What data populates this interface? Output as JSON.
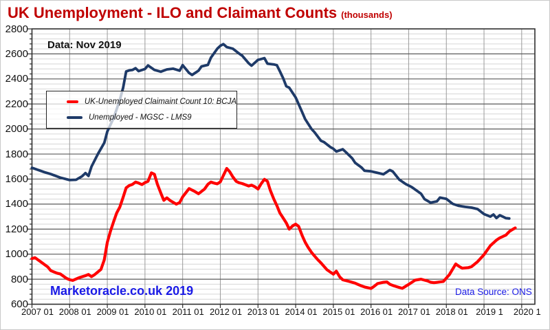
{
  "page": {
    "title": "UK Unemployment - ILO and Claimant Counts",
    "title_suffix": "(thousands)",
    "annotation_date": "Data: Nov 2019",
    "watermark": "Marketoracle.co.uk 2019",
    "data_source": "Data Source: ONS",
    "colors": {
      "title": "#C00000",
      "claimant_line": "#FF0000",
      "ilo_line": "#1E3A68",
      "watermark_blue": "#1A1AE6",
      "grid_minor": "#D6D6D6",
      "grid_major_h": "#5A5A5A",
      "grid_vertical": "#9A9A9A",
      "frame": "#2F2F2F"
    }
  },
  "chart_data": {
    "type": "line",
    "title": "UK Unemployment - ILO and Claimant Counts (thousands)",
    "units": "thousands",
    "annotation": "Data: Nov 2019",
    "source": "Data Source: ONS",
    "grid": "on",
    "legend_position": "upper-left",
    "x_axis": {
      "range": [
        2007.0,
        2020.35
      ],
      "tick_years": [
        2007,
        2008,
        2009,
        2010,
        2011,
        2012,
        2013,
        2014,
        2015,
        2016,
        2017,
        2018,
        2019,
        2020
      ],
      "tick_labels": [
        "2007 01",
        "2008 01",
        "2009 01",
        "2010 01",
        "2011 01",
        "2012 01",
        "2013 01",
        "2014 01",
        "2015 01",
        "2016 01",
        "2017 01",
        "2018 01",
        "2019 1",
        "2020 1"
      ]
    },
    "y_axis": {
      "range": [
        600,
        2800
      ],
      "major_step": 200,
      "minor_step": 40,
      "tick_labels": [
        2800,
        2600,
        2400,
        2200,
        2000,
        1800,
        1600,
        1400,
        1200,
        1000,
        800,
        600
      ]
    },
    "series": [
      {
        "name": "UK-Unemployed Claimaint Count 10: BCJA",
        "color": "#FF0000",
        "points": [
          [
            2007.0,
            965
          ],
          [
            2007.08,
            972
          ],
          [
            2007.25,
            935
          ],
          [
            2007.42,
            898
          ],
          [
            2007.5,
            868
          ],
          [
            2007.67,
            848
          ],
          [
            2007.75,
            842
          ],
          [
            2007.92,
            806
          ],
          [
            2008.0,
            796
          ],
          [
            2008.08,
            790
          ],
          [
            2008.25,
            812
          ],
          [
            2008.42,
            828
          ],
          [
            2008.5,
            838
          ],
          [
            2008.58,
            820
          ],
          [
            2008.67,
            838
          ],
          [
            2008.75,
            858
          ],
          [
            2008.83,
            878
          ],
          [
            2008.92,
            955
          ],
          [
            2009.0,
            1095
          ],
          [
            2009.08,
            1180
          ],
          [
            2009.17,
            1262
          ],
          [
            2009.25,
            1330
          ],
          [
            2009.33,
            1375
          ],
          [
            2009.42,
            1455
          ],
          [
            2009.5,
            1530
          ],
          [
            2009.58,
            1548
          ],
          [
            2009.67,
            1558
          ],
          [
            2009.75,
            1576
          ],
          [
            2009.83,
            1568
          ],
          [
            2009.92,
            1556
          ],
          [
            2010.0,
            1572
          ],
          [
            2010.08,
            1582
          ],
          [
            2010.17,
            1650
          ],
          [
            2010.25,
            1638
          ],
          [
            2010.33,
            1558
          ],
          [
            2010.42,
            1488
          ],
          [
            2010.5,
            1430
          ],
          [
            2010.58,
            1450
          ],
          [
            2010.67,
            1428
          ],
          [
            2010.83,
            1400
          ],
          [
            2010.92,
            1412
          ],
          [
            2011.0,
            1458
          ],
          [
            2011.17,
            1524
          ],
          [
            2011.33,
            1500
          ],
          [
            2011.42,
            1482
          ],
          [
            2011.58,
            1520
          ],
          [
            2011.67,
            1558
          ],
          [
            2011.75,
            1576
          ],
          [
            2011.83,
            1568
          ],
          [
            2011.92,
            1562
          ],
          [
            2012.0,
            1578
          ],
          [
            2012.17,
            1685
          ],
          [
            2012.25,
            1658
          ],
          [
            2012.33,
            1618
          ],
          [
            2012.42,
            1582
          ],
          [
            2012.5,
            1570
          ],
          [
            2012.58,
            1564
          ],
          [
            2012.67,
            1554
          ],
          [
            2012.75,
            1544
          ],
          [
            2012.83,
            1552
          ],
          [
            2012.92,
            1538
          ],
          [
            2013.0,
            1520
          ],
          [
            2013.08,
            1560
          ],
          [
            2013.17,
            1598
          ],
          [
            2013.25,
            1582
          ],
          [
            2013.33,
            1508
          ],
          [
            2013.42,
            1440
          ],
          [
            2013.5,
            1388
          ],
          [
            2013.58,
            1330
          ],
          [
            2013.67,
            1288
          ],
          [
            2013.75,
            1250
          ],
          [
            2013.83,
            1200
          ],
          [
            2013.92,
            1226
          ],
          [
            2014.0,
            1240
          ],
          [
            2014.08,
            1222
          ],
          [
            2014.17,
            1150
          ],
          [
            2014.25,
            1096
          ],
          [
            2014.33,
            1055
          ],
          [
            2014.42,
            1014
          ],
          [
            2014.5,
            985
          ],
          [
            2014.58,
            958
          ],
          [
            2014.67,
            930
          ],
          [
            2014.83,
            876
          ],
          [
            2015.0,
            840
          ],
          [
            2015.08,
            864
          ],
          [
            2015.17,
            818
          ],
          [
            2015.25,
            795
          ],
          [
            2015.42,
            782
          ],
          [
            2015.58,
            768
          ],
          [
            2015.75,
            746
          ],
          [
            2015.83,
            738
          ],
          [
            2016.0,
            726
          ],
          [
            2016.08,
            742
          ],
          [
            2016.17,
            764
          ],
          [
            2016.33,
            775
          ],
          [
            2016.42,
            778
          ],
          [
            2016.5,
            760
          ],
          [
            2016.58,
            750
          ],
          [
            2016.75,
            734
          ],
          [
            2016.83,
            727
          ],
          [
            2017.0,
            758
          ],
          [
            2017.17,
            792
          ],
          [
            2017.33,
            800
          ],
          [
            2017.5,
            786
          ],
          [
            2017.58,
            776
          ],
          [
            2017.67,
            772
          ],
          [
            2017.83,
            778
          ],
          [
            2017.92,
            782
          ],
          [
            2018.08,
            836
          ],
          [
            2018.25,
            922
          ],
          [
            2018.33,
            904
          ],
          [
            2018.42,
            888
          ],
          [
            2018.58,
            892
          ],
          [
            2018.67,
            900
          ],
          [
            2018.83,
            940
          ],
          [
            2019.0,
            996
          ],
          [
            2019.17,
            1068
          ],
          [
            2019.33,
            1112
          ],
          [
            2019.42,
            1130
          ],
          [
            2019.58,
            1152
          ],
          [
            2019.67,
            1180
          ],
          [
            2019.75,
            1196
          ],
          [
            2019.83,
            1210
          ]
        ]
      },
      {
        "name": "Unemployed - MGSC - LMS9",
        "color": "#1E3A68",
        "points": [
          [
            2007.0,
            1690
          ],
          [
            2007.17,
            1672
          ],
          [
            2007.33,
            1655
          ],
          [
            2007.5,
            1640
          ],
          [
            2007.75,
            1612
          ],
          [
            2008.0,
            1592
          ],
          [
            2008.17,
            1594
          ],
          [
            2008.33,
            1622
          ],
          [
            2008.42,
            1648
          ],
          [
            2008.5,
            1625
          ],
          [
            2008.58,
            1700
          ],
          [
            2008.75,
            1800
          ],
          [
            2008.92,
            1890
          ],
          [
            2009.0,
            1980
          ],
          [
            2009.17,
            2090
          ],
          [
            2009.25,
            2160
          ],
          [
            2009.33,
            2230
          ],
          [
            2009.42,
            2330
          ],
          [
            2009.5,
            2460
          ],
          [
            2009.58,
            2468
          ],
          [
            2009.67,
            2472
          ],
          [
            2009.75,
            2486
          ],
          [
            2009.83,
            2462
          ],
          [
            2010.0,
            2480
          ],
          [
            2010.08,
            2508
          ],
          [
            2010.25,
            2472
          ],
          [
            2010.42,
            2458
          ],
          [
            2010.58,
            2476
          ],
          [
            2010.75,
            2482
          ],
          [
            2010.92,
            2466
          ],
          [
            2011.0,
            2510
          ],
          [
            2011.17,
            2448
          ],
          [
            2011.25,
            2432
          ],
          [
            2011.42,
            2466
          ],
          [
            2011.5,
            2500
          ],
          [
            2011.67,
            2512
          ],
          [
            2011.75,
            2570
          ],
          [
            2011.92,
            2642
          ],
          [
            2012.0,
            2665
          ],
          [
            2012.08,
            2678
          ],
          [
            2012.17,
            2655
          ],
          [
            2012.33,
            2642
          ],
          [
            2012.5,
            2602
          ],
          [
            2012.58,
            2586
          ],
          [
            2012.75,
            2526
          ],
          [
            2012.83,
            2506
          ],
          [
            2013.0,
            2552
          ],
          [
            2013.17,
            2566
          ],
          [
            2013.25,
            2522
          ],
          [
            2013.42,
            2516
          ],
          [
            2013.5,
            2510
          ],
          [
            2013.58,
            2462
          ],
          [
            2013.67,
            2404
          ],
          [
            2013.75,
            2342
          ],
          [
            2013.83,
            2330
          ],
          [
            2014.0,
            2252
          ],
          [
            2014.17,
            2136
          ],
          [
            2014.25,
            2080
          ],
          [
            2014.42,
            2000
          ],
          [
            2014.5,
            1974
          ],
          [
            2014.67,
            1906
          ],
          [
            2014.75,
            1896
          ],
          [
            2014.92,
            1856
          ],
          [
            2015.0,
            1842
          ],
          [
            2015.08,
            1820
          ],
          [
            2015.25,
            1838
          ],
          [
            2015.33,
            1816
          ],
          [
            2015.5,
            1766
          ],
          [
            2015.58,
            1730
          ],
          [
            2015.75,
            1692
          ],
          [
            2015.83,
            1666
          ],
          [
            2016.0,
            1662
          ],
          [
            2016.17,
            1650
          ],
          [
            2016.33,
            1638
          ],
          [
            2016.5,
            1672
          ],
          [
            2016.58,
            1660
          ],
          [
            2016.75,
            1596
          ],
          [
            2016.92,
            1560
          ],
          [
            2017.08,
            1536
          ],
          [
            2017.25,
            1500
          ],
          [
            2017.33,
            1482
          ],
          [
            2017.42,
            1440
          ],
          [
            2017.58,
            1412
          ],
          [
            2017.75,
            1422
          ],
          [
            2017.83,
            1452
          ],
          [
            2018.0,
            1442
          ],
          [
            2018.17,
            1402
          ],
          [
            2018.33,
            1386
          ],
          [
            2018.5,
            1378
          ],
          [
            2018.67,
            1372
          ],
          [
            2018.83,
            1360
          ],
          [
            2019.0,
            1320
          ],
          [
            2019.17,
            1300
          ],
          [
            2019.25,
            1317
          ],
          [
            2019.33,
            1289
          ],
          [
            2019.42,
            1311
          ],
          [
            2019.5,
            1300
          ],
          [
            2019.58,
            1288
          ],
          [
            2019.67,
            1285
          ]
        ]
      }
    ]
  }
}
